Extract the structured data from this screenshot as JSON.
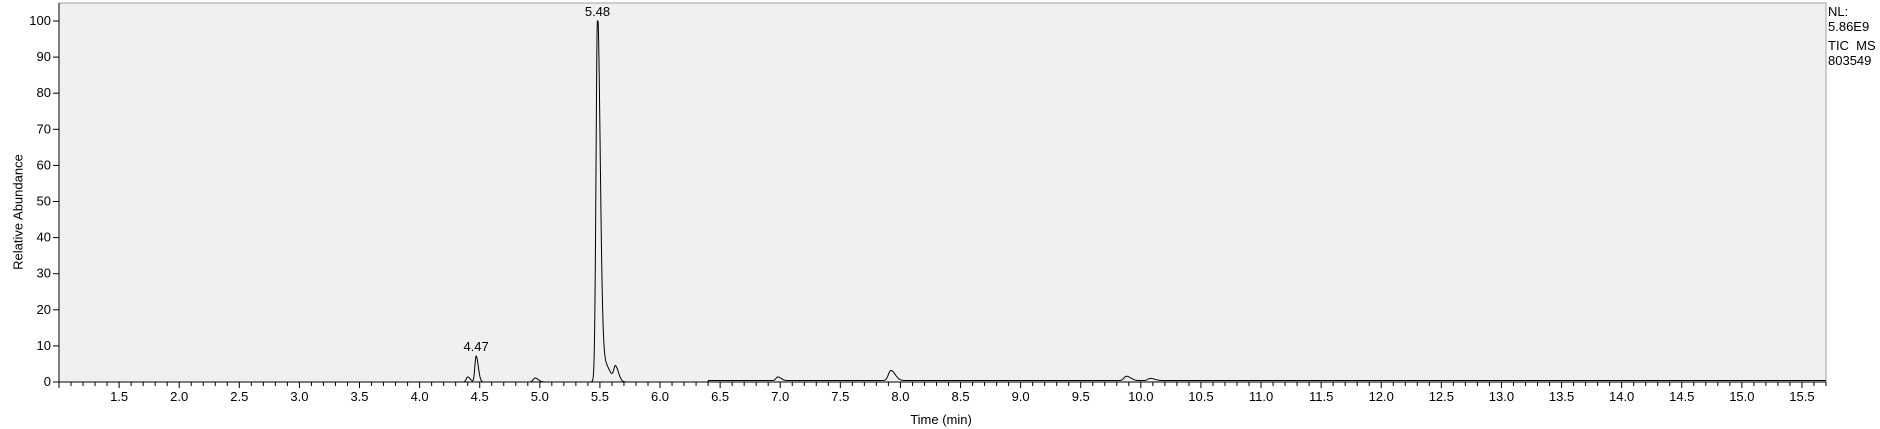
{
  "side_info": {
    "nl_label": "NL:",
    "nl_value": "5.86E9",
    "trace": "TIC  MS",
    "sample": "803549"
  },
  "chart_data": {
    "type": "line",
    "title": "",
    "xlabel": "Time (min)",
    "ylabel": "Relative Abundance",
    "xlim": [
      1.0,
      15.7
    ],
    "ylim": [
      0,
      100
    ],
    "x_ticks": [
      1.5,
      2.0,
      2.5,
      3.0,
      3.5,
      4.0,
      4.5,
      5.0,
      5.5,
      6.0,
      6.5,
      7.0,
      7.5,
      8.0,
      8.5,
      9.0,
      9.5,
      10.0,
      10.5,
      11.0,
      11.5,
      12.0,
      12.5,
      13.0,
      13.5,
      14.0,
      14.5,
      15.0,
      15.5
    ],
    "x_tick_labels": [
      "1.5",
      "2.0",
      "2.5",
      "3.0",
      "3.5",
      "4.0",
      "4.5",
      "5.0",
      "5.5",
      "6.0",
      "6.5",
      "7.0",
      "7.5",
      "8.0",
      "8.5",
      "9.0",
      "9.5",
      "10.0",
      "10.5",
      "11.0",
      "11.5",
      "12.0",
      "12.5",
      "13.0",
      "13.5",
      "14.0",
      "14.5",
      "15.0",
      "15.5"
    ],
    "y_ticks": [
      0,
      10,
      20,
      30,
      40,
      50,
      60,
      70,
      80,
      90,
      100
    ],
    "y_tick_labels": [
      "0",
      "10",
      "20",
      "30",
      "40",
      "50",
      "60",
      "70",
      "80",
      "90",
      "100"
    ],
    "grid": false,
    "background": "#f0f0f0",
    "line_color": "#000000",
    "peaks": [
      {
        "rt": 4.4,
        "height": 1.4,
        "width": 0.012
      },
      {
        "rt": 4.47,
        "height": 7.2,
        "width": 0.01
      },
      {
        "rt": 4.96,
        "height": 1.1,
        "width": 0.015
      },
      {
        "rt": 5.48,
        "height": 100,
        "width": 0.012
      },
      {
        "rt": 5.52,
        "height": 6.0,
        "width": 0.03
      },
      {
        "rt": 5.63,
        "height": 3.8,
        "width": 0.014
      },
      {
        "rt": 6.98,
        "height": 1.0,
        "width": 0.015
      },
      {
        "rt": 7.92,
        "height": 2.8,
        "width": 0.02
      },
      {
        "rt": 9.88,
        "height": 1.2,
        "width": 0.02
      },
      {
        "rt": 10.08,
        "height": 0.6,
        "width": 0.02
      }
    ],
    "baseline": [
      {
        "from": 1.0,
        "to": 6.4,
        "level": 0.0
      },
      {
        "from": 6.4,
        "to": 15.7,
        "level": 0.4
      }
    ],
    "annotations": [
      {
        "x": 4.47,
        "y": 7.2,
        "label": "4.47"
      },
      {
        "x": 5.48,
        "y": 100,
        "label": "5.48"
      }
    ]
  }
}
